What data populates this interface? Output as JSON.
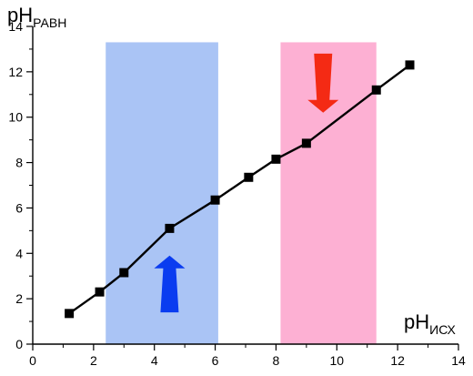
{
  "chart_data": {
    "type": "line",
    "xlabel": {
      "main": "pH",
      "sub": "ИСХ"
    },
    "ylabel": {
      "main": "pH",
      "sub": "РАВН"
    },
    "xlim": [
      0,
      14
    ],
    "ylim": [
      0,
      14
    ],
    "x_ticks": [
      0,
      2,
      4,
      6,
      8,
      10,
      12,
      14
    ],
    "y_ticks": [
      0,
      2,
      4,
      6,
      8,
      10,
      12,
      14
    ],
    "grid": false,
    "series": [
      {
        "color": "#000000",
        "marker": "square",
        "points": [
          {
            "x": 1.2,
            "y": 1.35
          },
          {
            "x": 2.2,
            "y": 2.3
          },
          {
            "x": 3.0,
            "y": 3.15
          },
          {
            "x": 4.5,
            "y": 5.1
          },
          {
            "x": 6.0,
            "y": 6.35
          },
          {
            "x": 7.1,
            "y": 7.35
          },
          {
            "x": 8.0,
            "y": 8.15
          },
          {
            "x": 9.0,
            "y": 8.85
          },
          {
            "x": 11.3,
            "y": 11.2
          },
          {
            "x": 12.4,
            "y": 12.3
          }
        ]
      }
    ],
    "bands": [
      {
        "x_start": 2.4,
        "x_end": 6.1,
        "y_start": 0,
        "y_end": 13.3,
        "color": "#aac4f5"
      },
      {
        "x_start": 8.15,
        "x_end": 11.3,
        "y_start": 0,
        "y_end": 13.3,
        "color": "#fdb0d3"
      }
    ],
    "arrows": [
      {
        "direction": "up",
        "x": 4.5,
        "y_from": 1.4,
        "y_to": 3.9,
        "color": "#0a3cf0"
      },
      {
        "direction": "down",
        "x": 9.55,
        "y_from": 12.8,
        "y_to": 10.2,
        "color": "#f42a14"
      }
    ]
  }
}
